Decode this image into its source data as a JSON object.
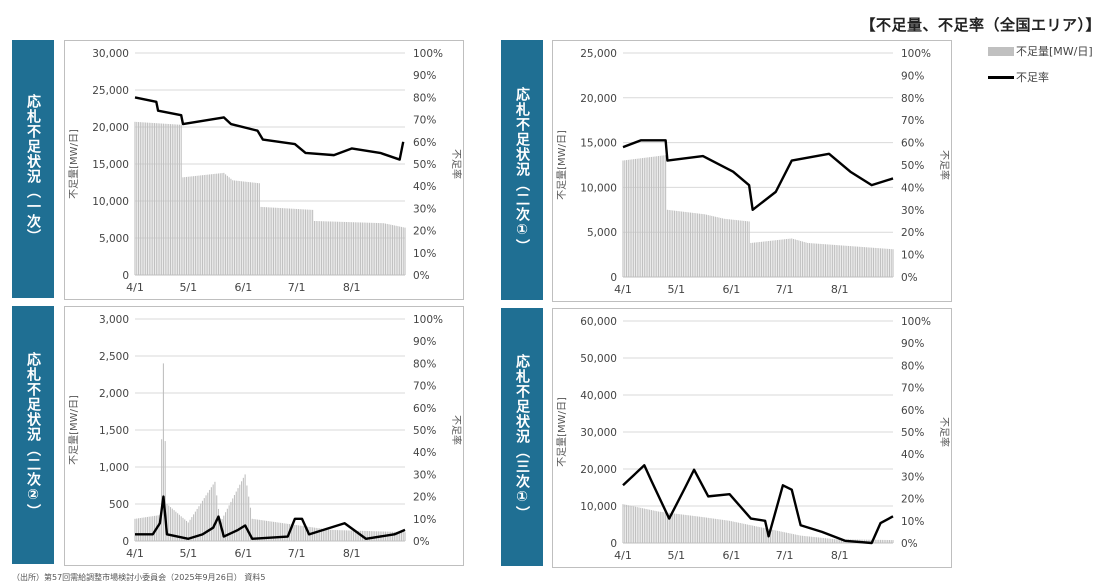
{
  "page_title": "【不足量、不足率（全国エリア）】",
  "legend": {
    "bar_label": "不足量[MW/日]",
    "line_label": "不足率"
  },
  "source_note": "（出所）第57回需給調整市場検討小委員会（2025年9月26日） 資料5",
  "colors": {
    "side_label": "#1f6f93",
    "bars": "#c0c0c0",
    "line": "#000000",
    "grid": "#d9d9d9"
  },
  "chart_data": [
    {
      "type": "bar+line",
      "side_label": "応札不足状況（一次）",
      "ylabel": "不足量[MW/日]",
      "y2label": "不足率",
      "ylim": [
        0,
        30000
      ],
      "y2lim": [
        0,
        100
      ],
      "y_ticks": [
        "0",
        "5,000",
        "10,000",
        "15,000",
        "20,000",
        "25,000",
        "30,000"
      ],
      "y2_ticks": [
        "0%",
        "10%",
        "20%",
        "30%",
        "40%",
        "50%",
        "60%",
        "70%",
        "80%",
        "90%",
        "100%"
      ],
      "x_ticks": [
        "4/1",
        "5/1",
        "6/1",
        "7/1",
        "8/1"
      ],
      "bar_segments": [
        [
          0,
          20700
        ],
        [
          26,
          20300
        ],
        [
          27,
          13200
        ],
        [
          50,
          13800
        ],
        [
          55,
          12800
        ],
        [
          70,
          12400
        ],
        [
          71,
          9200
        ],
        [
          100,
          8800
        ],
        [
          101,
          7300
        ],
        [
          140,
          7000
        ],
        [
          152,
          6400
        ]
      ],
      "line_points": [
        [
          0,
          80
        ],
        [
          12,
          78
        ],
        [
          13,
          74
        ],
        [
          26,
          72
        ],
        [
          27,
          68
        ],
        [
          50,
          71
        ],
        [
          54,
          68
        ],
        [
          69,
          65
        ],
        [
          72,
          61
        ],
        [
          90,
          59
        ],
        [
          96,
          55
        ],
        [
          112,
          54
        ],
        [
          122,
          57
        ],
        [
          138,
          55
        ],
        [
          149,
          52
        ],
        [
          151,
          60
        ]
      ]
    },
    {
      "type": "bar+line",
      "side_label": "応札不足状況（二次①）",
      "ylabel": "不足量[MW/日]",
      "y2label": "不足率",
      "ylim": [
        0,
        25000
      ],
      "y2lim": [
        0,
        100
      ],
      "y_ticks": [
        "0",
        "5,000",
        "10,000",
        "15,000",
        "20,000",
        "25,000"
      ],
      "y2_ticks": [
        "0%",
        "10%",
        "20%",
        "30%",
        "40%",
        "50%",
        "60%",
        "70%",
        "80%",
        "90%",
        "100%"
      ],
      "x_ticks": [
        "4/1",
        "5/1",
        "6/1",
        "7/1",
        "8/1"
      ],
      "bar_segments": [
        [
          0,
          13000
        ],
        [
          24,
          13600
        ],
        [
          25,
          7500
        ],
        [
          46,
          7000
        ],
        [
          57,
          6500
        ],
        [
          71,
          6200
        ],
        [
          72,
          3800
        ],
        [
          95,
          4300
        ],
        [
          104,
          3800
        ],
        [
          152,
          3100
        ]
      ],
      "line_points": [
        [
          0,
          58
        ],
        [
          10,
          61
        ],
        [
          24,
          61
        ],
        [
          25,
          52
        ],
        [
          45,
          54
        ],
        [
          62,
          47
        ],
        [
          71,
          41
        ],
        [
          73,
          30
        ],
        [
          86,
          38
        ],
        [
          95,
          52
        ],
        [
          116,
          55
        ],
        [
          128,
          47
        ],
        [
          140,
          41
        ],
        [
          152,
          44
        ]
      ]
    },
    {
      "type": "bar+line",
      "side_label": "応札不足状況（二次②）",
      "ylabel": "不足量[MW/日]",
      "y2label": "不足率",
      "ylim": [
        0,
        3000
      ],
      "y2lim": [
        0,
        100
      ],
      "y_ticks": [
        "0",
        "500",
        "1,000",
        "1,500",
        "2,000",
        "2,500",
        "3,000"
      ],
      "y2_ticks": [
        "0%",
        "10%",
        "20%",
        "30%",
        "40%",
        "50%",
        "60%",
        "70%",
        "80%",
        "90%",
        "100%"
      ],
      "x_ticks": [
        "4/1",
        "5/1",
        "6/1",
        "7/1",
        "8/1"
      ],
      "bar_segments": [
        [
          0,
          300
        ],
        [
          14,
          350
        ],
        [
          16,
          2400
        ],
        [
          17,
          1350
        ],
        [
          18,
          500
        ],
        [
          30,
          250
        ],
        [
          45,
          800
        ],
        [
          48,
          250
        ],
        [
          62,
          900
        ],
        [
          66,
          300
        ],
        [
          110,
          150
        ],
        [
          152,
          120
        ]
      ],
      "line_points": [
        [
          0,
          3
        ],
        [
          10,
          3
        ],
        [
          14,
          8
        ],
        [
          16,
          20
        ],
        [
          18,
          3
        ],
        [
          30,
          1
        ],
        [
          38,
          3
        ],
        [
          44,
          6
        ],
        [
          47,
          11
        ],
        [
          50,
          2
        ],
        [
          58,
          5
        ],
        [
          62,
          7
        ],
        [
          66,
          1
        ],
        [
          86,
          2
        ],
        [
          90,
          10
        ],
        [
          94,
          10
        ],
        [
          98,
          3
        ],
        [
          118,
          8
        ],
        [
          130,
          1
        ],
        [
          146,
          3
        ],
        [
          152,
          5
        ]
      ]
    },
    {
      "type": "bar+line",
      "side_label": "応札不足状況（三次①）",
      "ylabel": "不足量[MW/日]",
      "y2label": "不足率",
      "ylim": [
        0,
        60000
      ],
      "y2lim": [
        0,
        100
      ],
      "y_ticks": [
        "0",
        "10,000",
        "20,000",
        "30,000",
        "40,000",
        "50,000",
        "60,000"
      ],
      "y2_ticks": [
        "0%",
        "10%",
        "20%",
        "30%",
        "40%",
        "50%",
        "60%",
        "70%",
        "80%",
        "90%",
        "100%"
      ],
      "x_ticks": [
        "4/1",
        "5/1",
        "6/1",
        "7/1",
        "8/1"
      ],
      "bar_segments": [
        [
          0,
          10500
        ],
        [
          20,
          8500
        ],
        [
          45,
          7000
        ],
        [
          60,
          6000
        ],
        [
          90,
          3000
        ],
        [
          100,
          2000
        ],
        [
          120,
          1000
        ],
        [
          152,
          800
        ]
      ],
      "line_points": [
        [
          0,
          26
        ],
        [
          12,
          35
        ],
        [
          16,
          28
        ],
        [
          26,
          11
        ],
        [
          35,
          25
        ],
        [
          40,
          33
        ],
        [
          48,
          21
        ],
        [
          60,
          22
        ],
        [
          72,
          11
        ],
        [
          80,
          10
        ],
        [
          82,
          3
        ],
        [
          90,
          26
        ],
        [
          95,
          24
        ],
        [
          100,
          8
        ],
        [
          112,
          5
        ],
        [
          125,
          1
        ],
        [
          140,
          0
        ],
        [
          145,
          9
        ],
        [
          152,
          12
        ]
      ]
    }
  ]
}
